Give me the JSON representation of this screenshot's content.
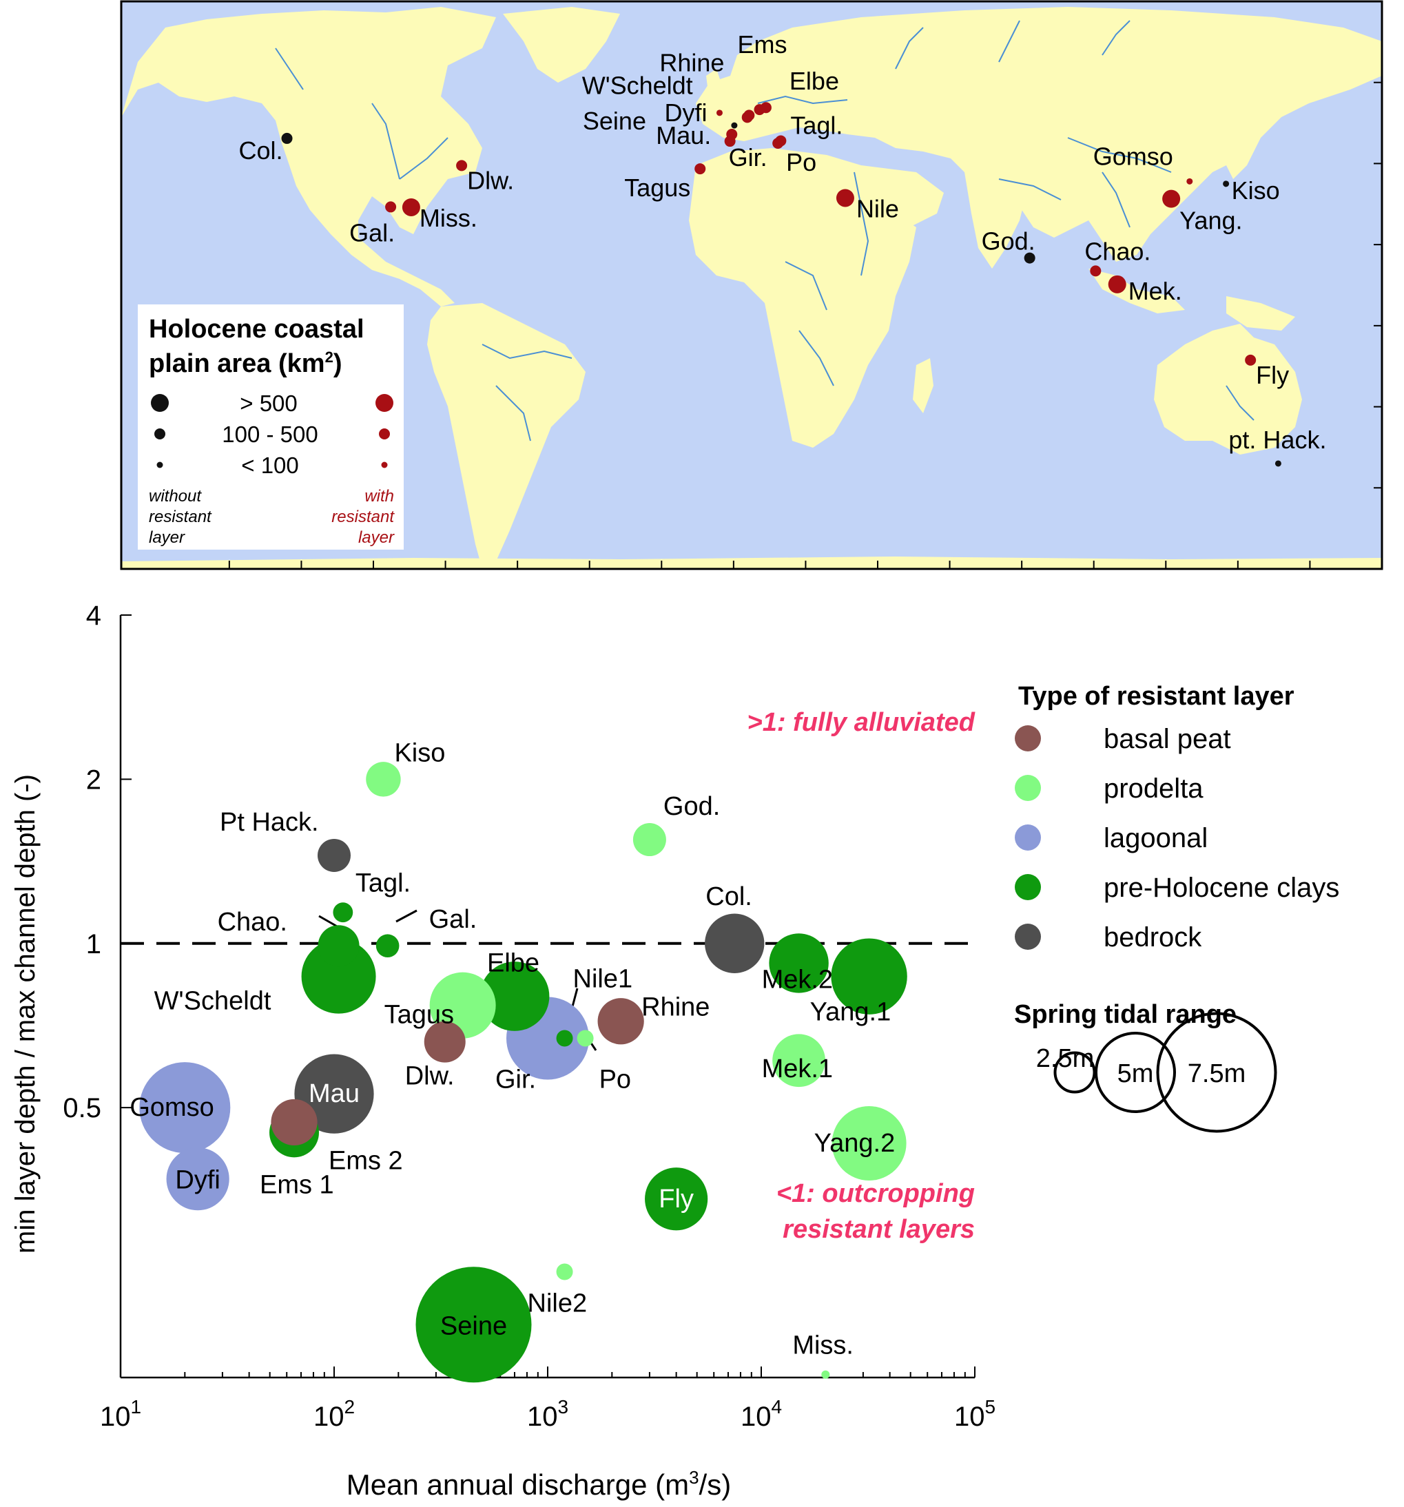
{
  "map": {
    "legend": {
      "title_line1": "Holocene coastal",
      "title_line2": "plain area (km",
      "title_sup": "2",
      "title_close": ")",
      "size_labels": [
        "> 500",
        "100 - 500",
        "< 100"
      ],
      "left_caption": [
        "without",
        "resistant",
        "layer"
      ],
      "right_caption": [
        "with",
        "resistant",
        "layer"
      ]
    },
    "colors": {
      "ocean": "#c2d4f7",
      "land": "#fdfbb8",
      "rivers": "#4a8fd4",
      "with_layer": "#a80f14",
      "without_layer": "#111111"
    },
    "sites": [
      {
        "name": "Col.",
        "lon": -124,
        "lat": 46.2,
        "size": "medium",
        "resistant": false
      },
      {
        "name": "Gal.",
        "lon": -95.2,
        "lat": 29.3,
        "size": "medium",
        "resistant": true
      },
      {
        "name": "Miss.",
        "lon": -89.5,
        "lat": 29.2,
        "size": "large",
        "resistant": true
      },
      {
        "name": "Dlw.",
        "lon": -75.5,
        "lat": 39.5,
        "size": "medium",
        "resistant": true
      },
      {
        "name": "Dyfi",
        "lon": -3.9,
        "lat": 52.5,
        "size": "small",
        "resistant": true
      },
      {
        "name": "Seine",
        "lon": 0.2,
        "lat": 49.4,
        "size": "small",
        "resistant": false
      },
      {
        "name": "W'Scheldt",
        "lon": 3.8,
        "lat": 51.4,
        "size": "medium",
        "resistant": true
      },
      {
        "name": "Rhine",
        "lon": 4.3,
        "lat": 51.9,
        "size": "medium",
        "resistant": true
      },
      {
        "name": "Ems",
        "lon": 7.2,
        "lat": 53.3,
        "size": "medium",
        "resistant": true
      },
      {
        "name": "Elbe",
        "lon": 9.0,
        "lat": 53.8,
        "size": "medium",
        "resistant": true
      },
      {
        "name": "Mau.",
        "lon": -0.5,
        "lat": 47.2,
        "size": "medium",
        "resistant": true
      },
      {
        "name": "Gir.",
        "lon": -1.0,
        "lat": 45.5,
        "size": "medium",
        "resistant": true
      },
      {
        "name": "Tagus",
        "lon": -9.3,
        "lat": 38.7,
        "size": "medium",
        "resistant": true
      },
      {
        "name": "Tagl.",
        "lon": 13.1,
        "lat": 45.6,
        "size": "medium",
        "resistant": true
      },
      {
        "name": "Po",
        "lon": 12.3,
        "lat": 45.0,
        "size": "medium",
        "resistant": true
      },
      {
        "name": "Nile",
        "lon": 31.0,
        "lat": 31.5,
        "size": "large",
        "resistant": true
      },
      {
        "name": "God.",
        "lon": 82.2,
        "lat": 16.7,
        "size": "medium",
        "resistant": false
      },
      {
        "name": "Gomso",
        "lon": 126.6,
        "lat": 35.6,
        "size": "small",
        "resistant": true
      },
      {
        "name": "Yang.",
        "lon": 121.5,
        "lat": 31.3,
        "size": "large",
        "resistant": true
      },
      {
        "name": "Kiso",
        "lon": 136.7,
        "lat": 35.0,
        "size": "small",
        "resistant": false
      },
      {
        "name": "Chao.",
        "lon": 100.5,
        "lat": 13.5,
        "size": "medium",
        "resistant": true
      },
      {
        "name": "Mek.",
        "lon": 106.5,
        "lat": 10.2,
        "size": "large",
        "resistant": true
      },
      {
        "name": "Fly",
        "lon": 143.5,
        "lat": -8.5,
        "size": "medium",
        "resistant": true
      },
      {
        "name": "pt. Hack.",
        "lon": 151.2,
        "lat": -34.0,
        "size": "small",
        "resistant": false
      }
    ]
  },
  "chart_data": {
    "type": "scatter",
    "xlabel": "Mean annual discharge (m",
    "xlabel_sup": "3",
    "xlabel_close": "/s)",
    "ylabel": "min layer depth / max channel depth (-)",
    "x_scale": "log",
    "y_scale": "log",
    "xlim": [
      10,
      100000
    ],
    "ylim": [
      0.16,
      4
    ],
    "x_ticks": [
      10,
      100,
      1000,
      10000,
      100000
    ],
    "x_tick_base": "10",
    "x_tick_exps": [
      "1",
      "2",
      "3",
      "4",
      "5"
    ],
    "y_ticks": [
      0.5,
      1,
      2,
      4
    ],
    "y_tick_labels": [
      "0.5",
      "1",
      "2",
      "4"
    ],
    "reference_line": 1,
    "annotation_top": ">1: fully alluviated",
    "annotation_bottom_line1": "<1: outcropping",
    "annotation_bottom_line2": "resistant layers",
    "annotation_color": "#f0356a",
    "legend_title": "Type of resistant layer",
    "categories": [
      {
        "key": "basal_peat",
        "label": "basal peat",
        "color": "#8a5552"
      },
      {
        "key": "prodelta",
        "label": "prodelta",
        "color": "#82fa82"
      },
      {
        "key": "lagoonal",
        "label": "lagoonal",
        "color": "#8b9ad8"
      },
      {
        "key": "pre_holocene_clays",
        "label": "pre-Holocene clays",
        "color": "#0f9a0f"
      },
      {
        "key": "bedrock",
        "label": "bedrock",
        "color": "#4f4f4f"
      }
    ],
    "size_legend_title": "Spring tidal range",
    "size_legend_values": [
      2.5,
      5,
      7.5
    ],
    "size_legend_labels": [
      "2.5m",
      "5m",
      "7.5m"
    ],
    "points": [
      {
        "name": "Kiso",
        "x": 170,
        "y": 2.0,
        "type": "prodelta",
        "tide": 2.1
      },
      {
        "name": "Pt Hack.",
        "x": 100,
        "y": 1.45,
        "type": "bedrock",
        "tide": 2.0
      },
      {
        "name": "Tagl.",
        "x": 110,
        "y": 1.14,
        "type": "pre_holocene_clays",
        "tide": 1.2
      },
      {
        "name": "Chao.",
        "x": 105,
        "y": 0.99,
        "type": "pre_holocene_clays",
        "tide": 2.5
      },
      {
        "name": "Gal.",
        "x": 178,
        "y": 0.99,
        "type": "pre_holocene_clays",
        "tide": 1.4
      },
      {
        "name": "W'Scheldt",
        "x": 105,
        "y": 0.87,
        "type": "pre_holocene_clays",
        "tide": 4.5
      },
      {
        "name": "Tagus",
        "x": 400,
        "y": 0.77,
        "type": "prodelta",
        "tide": 4.0
      },
      {
        "name": "Elbe",
        "x": 700,
        "y": 0.8,
        "type": "pre_holocene_clays",
        "tide": 4.2
      },
      {
        "name": "Dlw.",
        "x": 330,
        "y": 0.66,
        "type": "basal_peat",
        "tide": 2.5
      },
      {
        "name": "Gir.",
        "x": 1000,
        "y": 0.67,
        "type": "lagoonal",
        "tide": 5.0
      },
      {
        "name": "Nile1",
        "x": 1200,
        "y": 0.67,
        "type": "pre_holocene_clays",
        "tide": 1.0
      },
      {
        "name": "Po",
        "x": 1500,
        "y": 0.67,
        "type": "prodelta",
        "tide": 1.0
      },
      {
        "name": "Rhine",
        "x": 2200,
        "y": 0.72,
        "type": "basal_peat",
        "tide": 2.8
      },
      {
        "name": "God.",
        "x": 3000,
        "y": 1.55,
        "type": "prodelta",
        "tide": 2.0
      },
      {
        "name": "Col.",
        "x": 7500,
        "y": 1.0,
        "type": "bedrock",
        "tide": 3.6
      },
      {
        "name": "Mek.2",
        "x": 15000,
        "y": 0.92,
        "type": "pre_holocene_clays",
        "tide": 3.6
      },
      {
        "name": "Yang.1",
        "x": 32000,
        "y": 0.87,
        "type": "pre_holocene_clays",
        "tide": 4.6
      },
      {
        "name": "Mek.1",
        "x": 15000,
        "y": 0.61,
        "type": "prodelta",
        "tide": 3.2
      },
      {
        "name": "Gomso",
        "x": 20,
        "y": 0.5,
        "type": "lagoonal",
        "tide": 5.5
      },
      {
        "name": "Mau",
        "x": 100,
        "y": 0.53,
        "type": "bedrock",
        "tide": 4.8
      },
      {
        "name": "Ems 2",
        "x": 65,
        "y": 0.47,
        "type": "basal_peat",
        "tide": 2.8
      },
      {
        "name": "Ems 1",
        "x": 65,
        "y": 0.45,
        "type": "pre_holocene_clays",
        "tide": 3.0
      },
      {
        "name": "Yang.2",
        "x": 32000,
        "y": 0.43,
        "type": "prodelta",
        "tide": 4.5
      },
      {
        "name": "Dyfi",
        "x": 23,
        "y": 0.37,
        "type": "lagoonal",
        "tide": 3.8
      },
      {
        "name": "Fly",
        "x": 4000,
        "y": 0.34,
        "type": "pre_holocene_clays",
        "tide": 3.8
      },
      {
        "name": "Nile2",
        "x": 1200,
        "y": 0.25,
        "type": "prodelta",
        "tide": 1.0
      },
      {
        "name": "Seine",
        "x": 450,
        "y": 0.2,
        "type": "pre_holocene_clays",
        "tide": 7.0
      },
      {
        "name": "Miss.",
        "x": 20000,
        "y": 0.162,
        "type": "prodelta",
        "tide": 0.5
      }
    ]
  }
}
